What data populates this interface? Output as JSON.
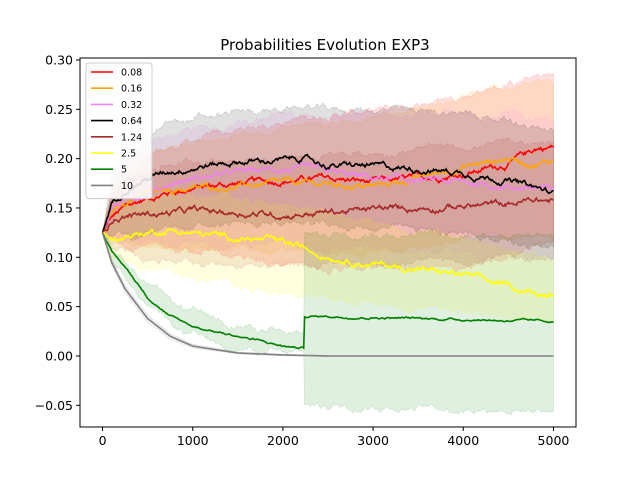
{
  "chart_data": {
    "type": "line",
    "title": "Probabilities Evolution EXP3",
    "xlabel": "",
    "ylabel": "",
    "xlim": [
      -250,
      5250
    ],
    "ylim": [
      -0.072,
      0.302
    ],
    "xticks": [
      0,
      1000,
      2000,
      3000,
      4000,
      5000
    ],
    "xtick_labels": [
      "0",
      "1000",
      "2000",
      "3000",
      "4000",
      "5000"
    ],
    "yticks": [
      -0.05,
      0.0,
      0.05,
      0.1,
      0.15,
      0.2,
      0.25,
      0.3
    ],
    "ytick_labels": [
      "−0.05",
      "0.00",
      "0.05",
      "0.10",
      "0.15",
      "0.20",
      "0.25",
      "0.30"
    ],
    "grid": false,
    "legend_position": "upper-left",
    "shaded_band": "mean ± deviation per series",
    "series": [
      {
        "name": "0.08",
        "color": "#ff0000",
        "x": [
          0,
          100,
          250,
          500,
          750,
          1000,
          1500,
          2000,
          2500,
          3000,
          3500,
          4000,
          4500,
          4800,
          5000
        ],
        "y": [
          0.125,
          0.14,
          0.15,
          0.16,
          0.166,
          0.17,
          0.175,
          0.178,
          0.18,
          0.176,
          0.18,
          0.185,
          0.195,
          0.21,
          0.212
        ],
        "lower": [
          0.125,
          0.118,
          0.112,
          0.11,
          0.108,
          0.105,
          0.1,
          0.095,
          0.09,
          0.088,
          0.09,
          0.092,
          0.1,
          0.11,
          0.115
        ],
        "upper": [
          0.125,
          0.16,
          0.18,
          0.198,
          0.21,
          0.218,
          0.228,
          0.238,
          0.245,
          0.248,
          0.255,
          0.265,
          0.275,
          0.282,
          0.285
        ]
      },
      {
        "name": "0.16",
        "color": "#ffa500",
        "x": [
          0,
          100,
          250,
          500,
          750,
          1000,
          1500,
          2000,
          2500,
          3000,
          3500,
          4000,
          4500,
          4800,
          5000
        ],
        "y": [
          0.125,
          0.145,
          0.158,
          0.165,
          0.168,
          0.17,
          0.172,
          0.175,
          0.174,
          0.172,
          0.18,
          0.192,
          0.2,
          0.195,
          0.198
        ],
        "lower": [
          0.125,
          0.12,
          0.115,
          0.112,
          0.11,
          0.11,
          0.11,
          0.108,
          0.106,
          0.105,
          0.11,
          0.118,
          0.12,
          0.118,
          0.12
        ],
        "upper": [
          0.125,
          0.168,
          0.19,
          0.205,
          0.212,
          0.218,
          0.224,
          0.232,
          0.238,
          0.242,
          0.252,
          0.262,
          0.272,
          0.275,
          0.278
        ]
      },
      {
        "name": "0.32",
        "color": "#ee82ee",
        "x": [
          0,
          100,
          250,
          500,
          750,
          1000,
          1500,
          2000,
          2500,
          3000,
          3500,
          4000,
          4500,
          4800,
          5000
        ],
        "y": [
          0.125,
          0.15,
          0.158,
          0.166,
          0.175,
          0.18,
          0.186,
          0.19,
          0.186,
          0.18,
          0.178,
          0.176,
          0.172,
          0.17,
          0.168
        ],
        "lower": [
          0.125,
          0.118,
          0.115,
          0.112,
          0.112,
          0.112,
          0.113,
          0.112,
          0.11,
          0.108,
          0.105,
          0.103,
          0.102,
          0.102,
          0.1
        ],
        "upper": [
          0.125,
          0.172,
          0.192,
          0.21,
          0.222,
          0.228,
          0.236,
          0.242,
          0.244,
          0.244,
          0.244,
          0.244,
          0.244,
          0.242,
          0.24
        ]
      },
      {
        "name": "0.64",
        "color": "#000000",
        "x": [
          0,
          100,
          250,
          500,
          750,
          1000,
          1500,
          2000,
          2200,
          2500,
          3000,
          3500,
          4000,
          4500,
          4800,
          5000
        ],
        "y": [
          0.125,
          0.155,
          0.17,
          0.18,
          0.188,
          0.192,
          0.197,
          0.198,
          0.201,
          0.193,
          0.192,
          0.19,
          0.186,
          0.178,
          0.17,
          0.164
        ],
        "lower": [
          0.125,
          0.12,
          0.12,
          0.125,
          0.128,
          0.13,
          0.133,
          0.135,
          0.135,
          0.132,
          0.13,
          0.128,
          0.124,
          0.118,
          0.112,
          0.108
        ],
        "upper": [
          0.125,
          0.178,
          0.202,
          0.222,
          0.235,
          0.24,
          0.246,
          0.25,
          0.252,
          0.25,
          0.25,
          0.248,
          0.246,
          0.24,
          0.232,
          0.226
        ]
      },
      {
        "name": "1.24",
        "color": "#a52a2a",
        "x": [
          0,
          100,
          250,
          500,
          750,
          1000,
          1500,
          2000,
          2500,
          3000,
          3500,
          4000,
          4500,
          4800,
          5000
        ],
        "y": [
          0.125,
          0.14,
          0.142,
          0.144,
          0.145,
          0.147,
          0.145,
          0.143,
          0.146,
          0.148,
          0.15,
          0.152,
          0.154,
          0.158,
          0.157
        ],
        "lower": [
          0.125,
          0.11,
          0.105,
          0.1,
          0.098,
          0.096,
          0.094,
          0.092,
          0.092,
          0.093,
          0.094,
          0.096,
          0.098,
          0.1,
          0.1
        ],
        "upper": [
          0.125,
          0.165,
          0.18,
          0.19,
          0.195,
          0.198,
          0.2,
          0.2,
          0.202,
          0.205,
          0.208,
          0.212,
          0.215,
          0.218,
          0.218
        ]
      },
      {
        "name": "2.5",
        "color": "#ffff00",
        "x": [
          0,
          100,
          250,
          500,
          750,
          1000,
          1500,
          2000,
          2500,
          3000,
          3500,
          4000,
          4500,
          4800,
          5000
        ],
        "y": [
          0.125,
          0.118,
          0.122,
          0.125,
          0.128,
          0.124,
          0.12,
          0.115,
          0.102,
          0.093,
          0.088,
          0.082,
          0.07,
          0.064,
          0.064
        ],
        "lower": [
          0.125,
          0.1,
          0.095,
          0.088,
          0.085,
          0.08,
          0.072,
          0.065,
          0.058,
          0.052,
          0.048,
          0.044,
          0.04,
          0.038,
          0.038
        ],
        "upper": [
          0.125,
          0.135,
          0.15,
          0.16,
          0.162,
          0.162,
          0.16,
          0.155,
          0.145,
          0.135,
          0.125,
          0.118,
          0.108,
          0.102,
          0.1
        ]
      },
      {
        "name": "5",
        "color": "#008000",
        "x": [
          0,
          100,
          250,
          500,
          750,
          1000,
          1500,
          2000,
          2200,
          2230,
          2240,
          2500,
          3000,
          3500,
          4000,
          4500,
          5000
        ],
        "y": [
          0.125,
          0.105,
          0.09,
          0.06,
          0.04,
          0.03,
          0.02,
          0.01,
          0.008,
          0.008,
          0.04,
          0.04,
          0.039,
          0.038,
          0.037,
          0.036,
          0.035
        ],
        "lower": [
          0.125,
          0.1,
          0.082,
          0.05,
          0.03,
          0.02,
          0.008,
          0.002,
          0.002,
          0.002,
          -0.05,
          -0.05,
          -0.051,
          -0.052,
          -0.053,
          -0.054,
          -0.055
        ],
        "upper": [
          0.125,
          0.11,
          0.098,
          0.072,
          0.054,
          0.044,
          0.032,
          0.022,
          0.02,
          0.02,
          0.124,
          0.124,
          0.124,
          0.124,
          0.124,
          0.124,
          0.124
        ]
      },
      {
        "name": "10",
        "color": "#808080",
        "x": [
          0,
          100,
          250,
          500,
          750,
          1000,
          1500,
          2000,
          2500,
          3000,
          4000,
          5000
        ],
        "y": [
          0.125,
          0.095,
          0.068,
          0.038,
          0.02,
          0.01,
          0.003,
          0.001,
          0.0,
          0.0,
          0.0,
          0.0
        ],
        "lower": [
          0.125,
          0.092,
          0.064,
          0.034,
          0.017,
          0.008,
          0.002,
          0.0,
          0.0,
          0.0,
          0.0,
          0.0
        ],
        "upper": [
          0.125,
          0.098,
          0.072,
          0.042,
          0.023,
          0.012,
          0.004,
          0.002,
          0.0,
          0.0,
          0.0,
          0.0
        ]
      }
    ]
  }
}
